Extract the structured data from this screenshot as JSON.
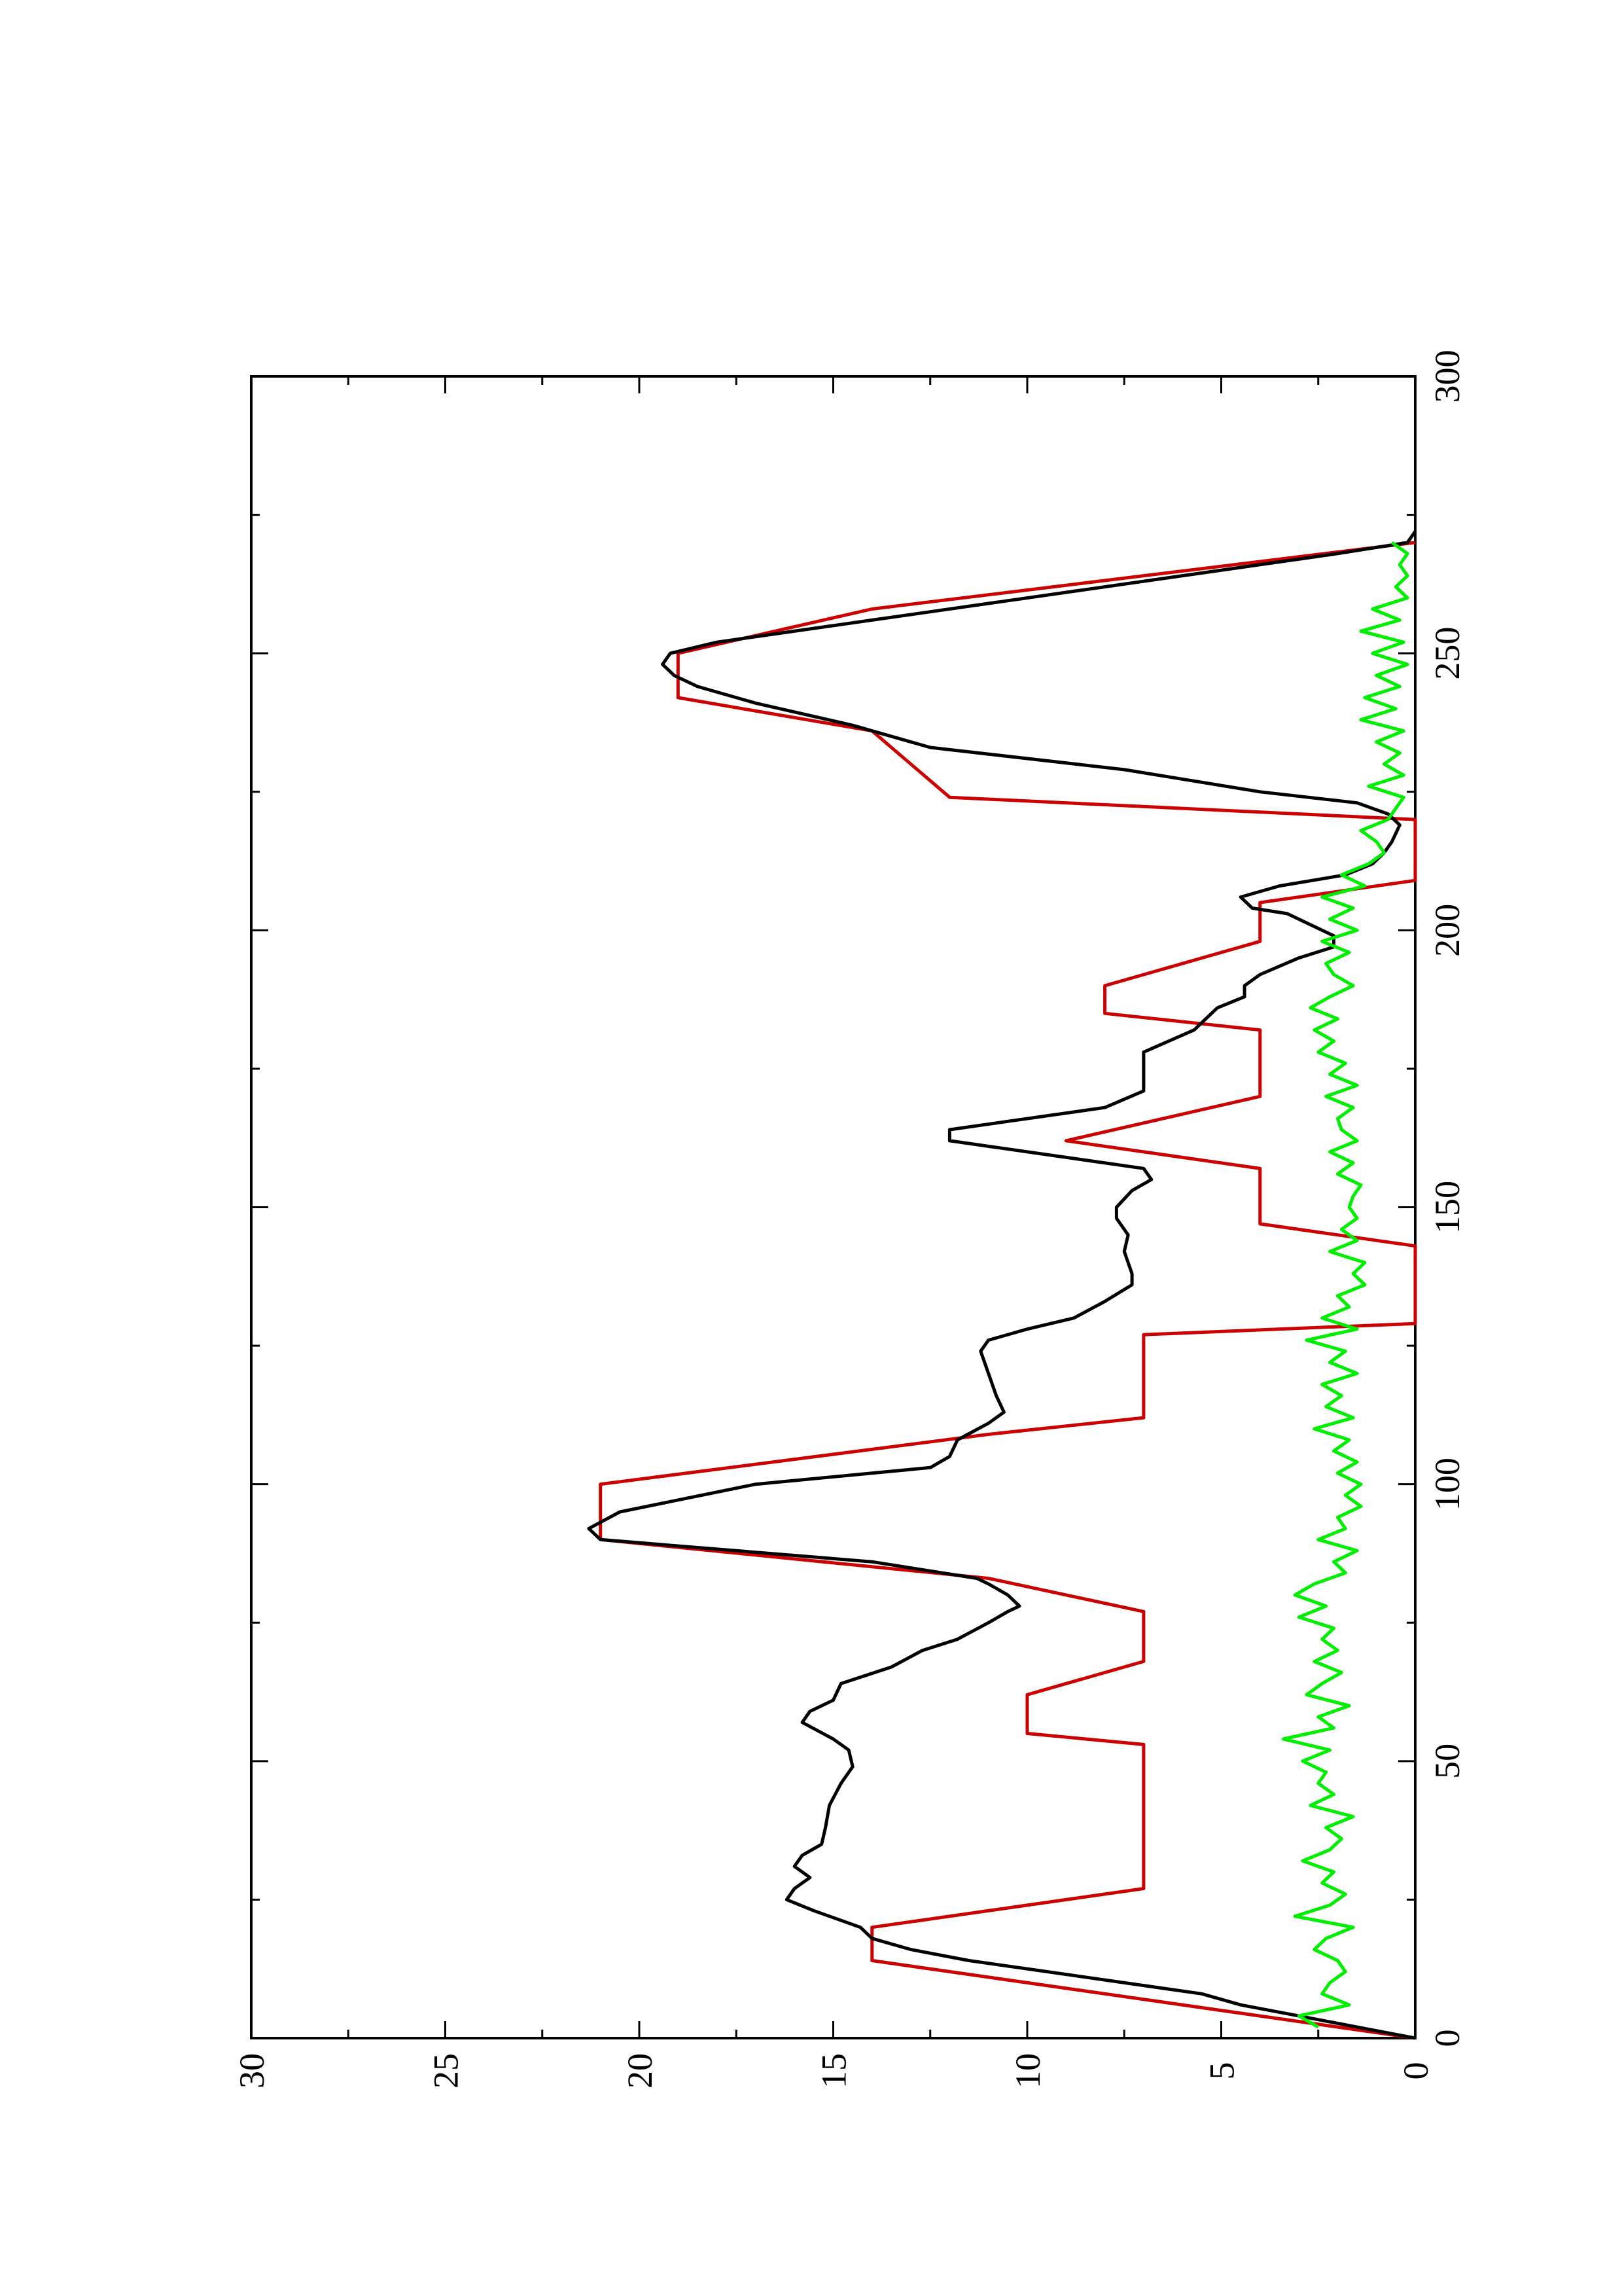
{
  "chart_data": {
    "type": "line",
    "title": "",
    "xlabel": "",
    "ylabel": "",
    "xlim": [
      0,
      300
    ],
    "ylim": [
      0,
      30
    ],
    "x_ticks": [
      0,
      50,
      100,
      150,
      200,
      250,
      300
    ],
    "y_ticks": [
      0,
      5,
      10,
      15,
      20,
      25,
      30
    ],
    "x_tick_labels": [
      "0",
      "50",
      "100",
      "150",
      "200",
      "250",
      "300"
    ],
    "y_tick_labels": [
      "0",
      "5",
      "10",
      "15",
      "20",
      "25",
      "30"
    ],
    "grid": false,
    "legend": "none",
    "orientation": "rotated-90",
    "series": [
      {
        "color": "#cc0000",
        "points": [
          [
            0,
            0
          ],
          [
            14,
            14
          ],
          [
            20,
            14
          ],
          [
            27,
            7
          ],
          [
            53,
            7
          ],
          [
            55,
            10
          ],
          [
            62,
            10
          ],
          [
            68,
            7
          ],
          [
            77,
            7
          ],
          [
            83,
            11
          ],
          [
            90,
            21
          ],
          [
            100,
            21
          ],
          [
            109,
            11
          ],
          [
            112,
            7
          ],
          [
            127,
            7
          ],
          [
            129,
            0
          ],
          [
            143,
            0
          ],
          [
            147,
            4
          ],
          [
            157,
            4
          ],
          [
            162,
            9
          ],
          [
            170,
            4
          ],
          [
            182,
            4
          ],
          [
            185,
            8
          ],
          [
            190,
            8
          ],
          [
            198,
            4
          ],
          [
            205,
            4
          ],
          [
            209,
            0
          ],
          [
            220,
            0
          ],
          [
            224,
            12
          ],
          [
            236,
            14
          ],
          [
            242,
            19
          ],
          [
            250,
            19
          ],
          [
            258,
            14
          ],
          [
            270,
            0
          ]
        ]
      },
      {
        "color": "#000000",
        "points": [
          [
            0,
            0
          ],
          [
            2,
            1.5
          ],
          [
            4,
            3
          ],
          [
            6,
            4.5
          ],
          [
            8,
            5.5
          ],
          [
            10,
            7.5
          ],
          [
            12,
            9.5
          ],
          [
            14,
            11.5
          ],
          [
            16,
            13
          ],
          [
            18,
            14
          ],
          [
            20,
            14.3
          ],
          [
            23,
            15.5
          ],
          [
            25,
            16.2
          ],
          [
            27,
            16
          ],
          [
            29,
            15.6
          ],
          [
            31,
            16
          ],
          [
            33,
            15.8
          ],
          [
            35,
            15.3
          ],
          [
            38,
            15.2
          ],
          [
            42,
            15.1
          ],
          [
            46,
            14.8
          ],
          [
            49,
            14.5
          ],
          [
            52,
            14.6
          ],
          [
            54,
            15
          ],
          [
            57,
            15.8
          ],
          [
            59,
            15.6
          ],
          [
            61,
            15
          ],
          [
            64,
            14.8
          ],
          [
            67,
            13.5
          ],
          [
            70,
            12.7
          ],
          [
            72,
            11.8
          ],
          [
            75,
            11
          ],
          [
            77,
            10.5
          ],
          [
            78,
            10.2
          ],
          [
            80,
            10.5
          ],
          [
            82,
            11
          ],
          [
            83,
            11.3
          ],
          [
            86,
            14
          ],
          [
            90,
            21
          ],
          [
            92,
            21.3
          ],
          [
            95,
            20.5
          ],
          [
            100,
            17
          ],
          [
            103,
            12.5
          ],
          [
            105,
            12
          ],
          [
            108,
            11.8
          ],
          [
            111,
            11
          ],
          [
            113,
            10.6
          ],
          [
            116,
            10.8
          ],
          [
            120,
            11
          ],
          [
            124,
            11.2
          ],
          [
            126,
            11
          ],
          [
            128,
            10
          ],
          [
            130,
            8.8
          ],
          [
            133,
            8
          ],
          [
            136,
            7.3
          ],
          [
            138,
            7.3
          ],
          [
            142,
            7.5
          ],
          [
            145,
            7.4
          ],
          [
            148,
            7.7
          ],
          [
            150,
            7.7
          ],
          [
            153,
            7.3
          ],
          [
            155,
            6.8
          ],
          [
            157,
            7
          ],
          [
            162,
            12
          ],
          [
            164,
            12
          ],
          [
            168,
            8
          ],
          [
            171,
            7
          ],
          [
            174,
            7
          ],
          [
            178,
            7
          ],
          [
            182,
            5.7
          ],
          [
            186,
            5.1
          ],
          [
            188,
            4.4
          ],
          [
            190,
            4.4
          ],
          [
            192,
            4
          ],
          [
            195,
            3
          ],
          [
            197,
            2.1
          ],
          [
            199,
            2.1
          ],
          [
            201,
            2.7
          ],
          [
            203,
            3.3
          ],
          [
            204,
            4.2
          ],
          [
            206,
            4.5
          ],
          [
            208,
            3.5
          ],
          [
            210,
            1.8
          ],
          [
            212,
            1.1
          ],
          [
            214,
            0.8
          ],
          [
            216,
            0.6
          ],
          [
            219,
            0.4
          ],
          [
            221,
            0.7
          ],
          [
            223,
            1.5
          ],
          [
            225,
            4
          ],
          [
            229,
            7.5
          ],
          [
            233,
            12.5
          ],
          [
            237,
            14.5
          ],
          [
            241,
            17
          ],
          [
            244,
            18.5
          ],
          [
            246,
            19.1
          ],
          [
            248,
            19.4
          ],
          [
            250,
            19.2
          ],
          [
            252,
            18
          ],
          [
            256,
            14
          ],
          [
            262,
            8
          ],
          [
            268,
            2
          ],
          [
            270,
            0.2
          ],
          [
            272,
            0
          ]
        ]
      },
      {
        "color": "#00ee00",
        "points": [
          [
            2,
            2.5
          ],
          [
            4,
            3.0
          ],
          [
            6,
            1.7
          ],
          [
            8,
            2.4
          ],
          [
            10,
            2.2
          ],
          [
            12,
            1.8
          ],
          [
            14,
            2.0
          ],
          [
            16,
            2.6
          ],
          [
            18,
            2.3
          ],
          [
            20,
            1.6
          ],
          [
            22,
            3.1
          ],
          [
            24,
            2.2
          ],
          [
            26,
            1.8
          ],
          [
            28,
            2.4
          ],
          [
            30,
            2.1
          ],
          [
            32,
            2.9
          ],
          [
            34,
            2.2
          ],
          [
            36,
            1.9
          ],
          [
            38,
            2.3
          ],
          [
            40,
            1.6
          ],
          [
            42,
            2.7
          ],
          [
            44,
            2.1
          ],
          [
            46,
            2.5
          ],
          [
            48,
            2.3
          ],
          [
            50,
            2.9
          ],
          [
            52,
            2.2
          ],
          [
            54,
            3.4
          ],
          [
            56,
            2.1
          ],
          [
            58,
            2.5
          ],
          [
            60,
            1.7
          ],
          [
            62,
            2.8
          ],
          [
            64,
            2.4
          ],
          [
            66,
            1.9
          ],
          [
            68,
            2.6
          ],
          [
            70,
            2.0
          ],
          [
            72,
            2.4
          ],
          [
            74,
            2.1
          ],
          [
            76,
            3.0
          ],
          [
            78,
            2.3
          ],
          [
            80,
            3.1
          ],
          [
            82,
            2.6
          ],
          [
            84,
            1.8
          ],
          [
            86,
            2.1
          ],
          [
            88,
            1.5
          ],
          [
            90,
            2.5
          ],
          [
            92,
            1.8
          ],
          [
            94,
            2.0
          ],
          [
            96,
            1.4
          ],
          [
            98,
            1.8
          ],
          [
            100,
            1.4
          ],
          [
            102,
            2.0
          ],
          [
            104,
            1.5
          ],
          [
            106,
            2.1
          ],
          [
            108,
            1.7
          ],
          [
            110,
            2.6
          ],
          [
            112,
            1.6
          ],
          [
            114,
            2.3
          ],
          [
            116,
            1.9
          ],
          [
            118,
            2.4
          ],
          [
            120,
            1.5
          ],
          [
            122,
            2.2
          ],
          [
            124,
            1.8
          ],
          [
            126,
            2.8
          ],
          [
            128,
            1.5
          ],
          [
            130,
            2.4
          ],
          [
            132,
            1.7
          ],
          [
            134,
            2.0
          ],
          [
            136,
            1.3
          ],
          [
            138,
            1.6
          ],
          [
            140,
            1.3
          ],
          [
            142,
            2.2
          ],
          [
            144,
            1.5
          ],
          [
            146,
            1.9
          ],
          [
            148,
            1.5
          ],
          [
            150,
            1.7
          ],
          [
            152,
            1.6
          ],
          [
            154,
            1.4
          ],
          [
            156,
            2.0
          ],
          [
            158,
            1.6
          ],
          [
            160,
            2.2
          ],
          [
            162,
            1.5
          ],
          [
            164,
            1.9
          ],
          [
            166,
            2.0
          ],
          [
            168,
            1.6
          ],
          [
            170,
            2.3
          ],
          [
            172,
            1.5
          ],
          [
            174,
            2.2
          ],
          [
            176,
            1.8
          ],
          [
            178,
            2.5
          ],
          [
            180,
            2.1
          ],
          [
            182,
            2.6
          ],
          [
            184,
            2.0
          ],
          [
            186,
            2.7
          ],
          [
            188,
            2.2
          ],
          [
            190,
            1.6
          ],
          [
            192,
            2.1
          ],
          [
            194,
            2.3
          ],
          [
            196,
            1.7
          ],
          [
            198,
            2.4
          ],
          [
            200,
            1.5
          ],
          [
            202,
            2.2
          ],
          [
            204,
            1.6
          ],
          [
            206,
            2.4
          ],
          [
            208,
            1.3
          ],
          [
            210,
            1.9
          ],
          [
            212,
            1.2
          ],
          [
            214,
            0.8
          ],
          [
            216,
            1.0
          ],
          [
            218,
            1.4
          ],
          [
            220,
            0.7
          ],
          [
            222,
            0.5
          ],
          [
            224,
            0.3
          ],
          [
            226,
            1.2
          ],
          [
            228,
            0.3
          ],
          [
            230,
            0.8
          ],
          [
            232,
            0.4
          ],
          [
            234,
            1.0
          ],
          [
            236,
            0.3
          ],
          [
            238,
            1.4
          ],
          [
            240,
            0.5
          ],
          [
            242,
            1.3
          ],
          [
            244,
            0.4
          ],
          [
            246,
            1.0
          ],
          [
            248,
            0.2
          ],
          [
            250,
            1.1
          ],
          [
            252,
            0.3
          ],
          [
            254,
            1.4
          ],
          [
            256,
            0.4
          ],
          [
            258,
            1.1
          ],
          [
            260,
            0.2
          ],
          [
            262,
            0.5
          ],
          [
            264,
            0.2
          ],
          [
            266,
            0.4
          ],
          [
            268,
            0.2
          ],
          [
            270,
            0.6
          ]
        ]
      }
    ]
  }
}
